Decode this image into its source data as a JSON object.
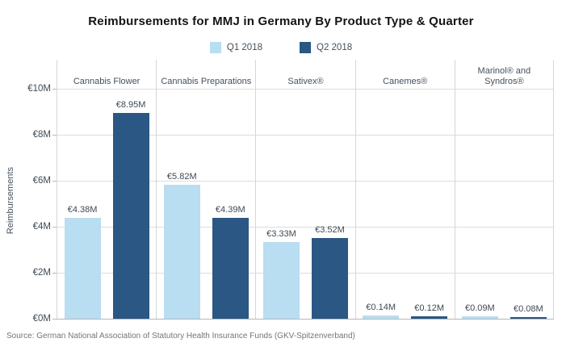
{
  "title": "Reimbursements for MMJ in Germany By Product Type & Quarter",
  "legend": {
    "items": [
      {
        "label": "Q1 2018",
        "color": "#B9DDF1"
      },
      {
        "label": "Q2 2018",
        "color": "#2A5783"
      }
    ]
  },
  "y_axis": {
    "label": "Reimbursements",
    "ticks": [
      "€10M",
      "€8M",
      "€6M",
      "€4M",
      "€2M",
      "€0M"
    ]
  },
  "source": "Source: German National Association of Statutory Health Insurance Funds (GKV-Spitzenverband)",
  "colors": {
    "q1": "#B9DDF1",
    "q2": "#2A5783",
    "gridline": "#dddddd",
    "panel_border": "#d6d6d6",
    "axis_line": "#b7b7b7",
    "text": "#44515c"
  },
  "chart_data": {
    "type": "bar",
    "title": "Reimbursements for MMJ in Germany By Product Type & Quarter",
    "categories": [
      "Cannabis Flower",
      "Cannabis Preparations",
      "Sativex®",
      "Canemes®",
      "Marinol® and Syndros®"
    ],
    "series": [
      {
        "name": "Q1 2018",
        "color": "#B9DDF1",
        "values": [
          4.38,
          5.82,
          3.33,
          0.14,
          0.09
        ],
        "labels": [
          "€4.38M",
          "€5.82M",
          "€3.33M",
          "€0.14M",
          "€0.09M"
        ]
      },
      {
        "name": "Q2 2018",
        "color": "#2A5783",
        "values": [
          8.95,
          4.39,
          3.52,
          0.12,
          0.08
        ],
        "labels": [
          "€8.95M",
          "€4.39M",
          "€3.52M",
          "€0.12M",
          "€0.08M"
        ]
      }
    ],
    "xlabel": "",
    "ylabel": "Reimbursements",
    "ylim": [
      0,
      10
    ],
    "ytick_step": 2,
    "grid": true,
    "legend_position": "top",
    "value_labels": true
  }
}
